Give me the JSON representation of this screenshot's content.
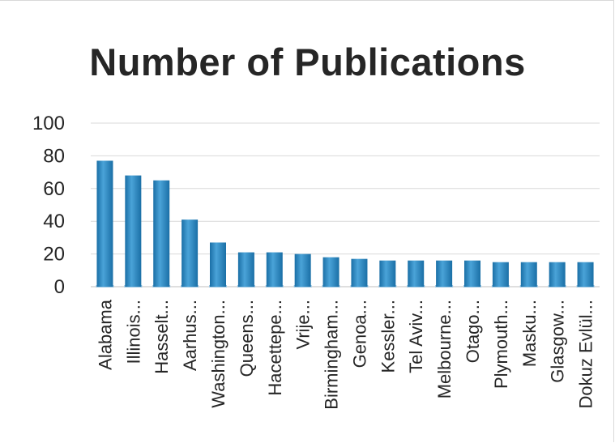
{
  "chart_data": {
    "type": "bar",
    "title": "Number of Publications",
    "categories": [
      "Alabama",
      "Illinois...",
      "Hasselt...",
      "Aarhus...",
      "Washington...",
      "Queens...",
      "Hacettepe...",
      "Vrije...",
      "Birmingham...",
      "Genoa...",
      "Kessler...",
      "Tel Aviv...",
      "Melbourne...",
      "Otago...",
      "Plymouth...",
      "Masku...",
      "Glasgow...",
      "Dokuz Evlül..."
    ],
    "values": [
      77,
      68,
      65,
      41,
      27,
      21,
      21,
      20,
      18,
      17,
      16,
      16,
      16,
      16,
      15,
      15,
      15,
      15
    ],
    "ylim": [
      0,
      100
    ],
    "yticks": [
      0,
      20,
      40,
      60,
      80,
      100
    ],
    "grid": true,
    "legend": "none",
    "xlabel": "",
    "ylabel": "",
    "colors": {
      "bar_light": "#4aa3d8",
      "bar_dark": "#1a6fa6",
      "grid": "#d9d9d9",
      "text": "#262626"
    }
  }
}
